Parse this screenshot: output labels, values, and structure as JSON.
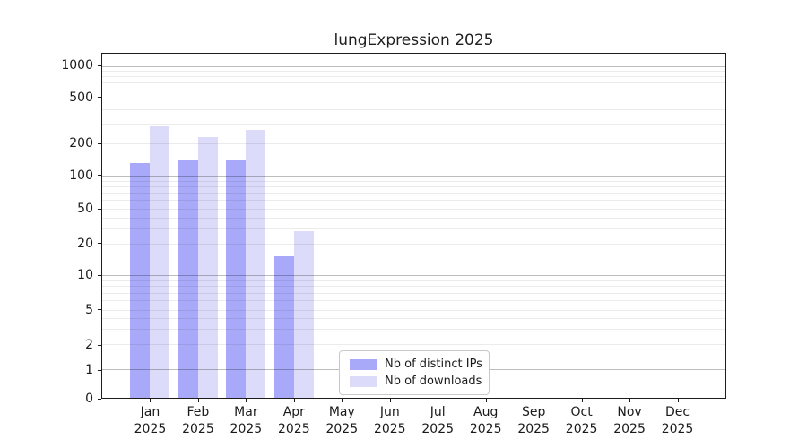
{
  "chart_data": {
    "type": "bar",
    "title": "lungExpression 2025",
    "categories": [
      "Jan",
      "Feb",
      "Mar",
      "Apr",
      "May",
      "Jun",
      "Jul",
      "Aug",
      "Sep",
      "Oct",
      "Nov",
      "Dec"
    ],
    "year_label": "2025",
    "series": [
      {
        "name": "Nb of distinct IPs",
        "color": "#a9a9fa",
        "values": [
          133,
          141,
          139,
          15,
          0,
          0,
          0,
          0,
          0,
          0,
          0,
          0
        ]
      },
      {
        "name": "Nb of downloads",
        "color": "#dcdcfa",
        "values": [
          286,
          231,
          267,
          28,
          0,
          0,
          0,
          0,
          0,
          0,
          0,
          0
        ]
      }
    ],
    "yscale": "symlog",
    "y_ticks": [
      0,
      1,
      2,
      5,
      10,
      20,
      50,
      100,
      200,
      500,
      1000
    ],
    "y_minor_gridlines": [
      3,
      4,
      6,
      7,
      8,
      9,
      30,
      40,
      60,
      70,
      80,
      90,
      300,
      400,
      600,
      700,
      800,
      900
    ],
    "ylim": [
      0,
      1300
    ],
    "grid": true,
    "legend_position": "lower center",
    "colors": {
      "spine": "#1c1c1c",
      "major_grid": "#bdbdbd",
      "minor_grid": "#ececec"
    }
  }
}
